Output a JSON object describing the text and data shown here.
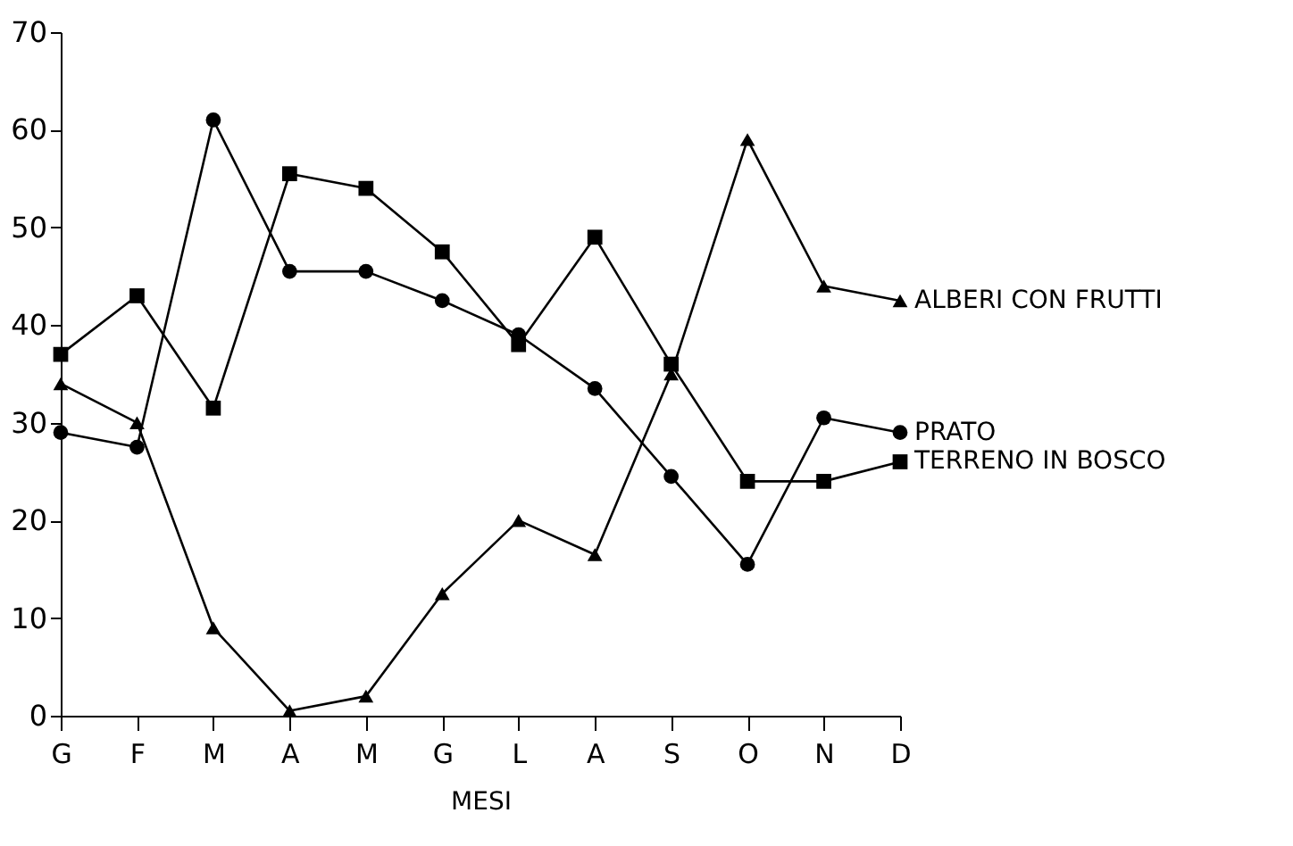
{
  "chart_data": {
    "type": "line",
    "xlabel": "MESI",
    "categories": [
      "G",
      "F",
      "M",
      "A",
      "M",
      "G",
      "L",
      "A",
      "S",
      "O",
      "N",
      "D"
    ],
    "series": [
      {
        "name": "ALBERI CON FRUTTI",
        "color": "#000000",
        "marker": "triangle",
        "values": [
          34,
          30,
          9,
          0.5,
          2,
          12.5,
          20,
          16.5,
          35,
          59,
          44,
          42.5
        ]
      },
      {
        "name": "PRATO",
        "color": "#000000",
        "marker": "circle",
        "values": [
          29,
          27.5,
          61,
          45.5,
          45.5,
          42.5,
          39,
          33.5,
          24.5,
          15.5,
          30.5,
          29
        ]
      },
      {
        "name": "TERRENO IN BOSCO",
        "color": "#000000",
        "marker": "square",
        "values": [
          37,
          43,
          31.5,
          55.5,
          54,
          47.5,
          38,
          49,
          36,
          24,
          24,
          26
        ]
      }
    ],
    "ylim": [
      0,
      70
    ],
    "yticks": [
      0,
      10,
      20,
      30,
      40,
      50,
      60,
      70
    ],
    "grid": false,
    "legend": false,
    "line_style": "solid"
  }
}
